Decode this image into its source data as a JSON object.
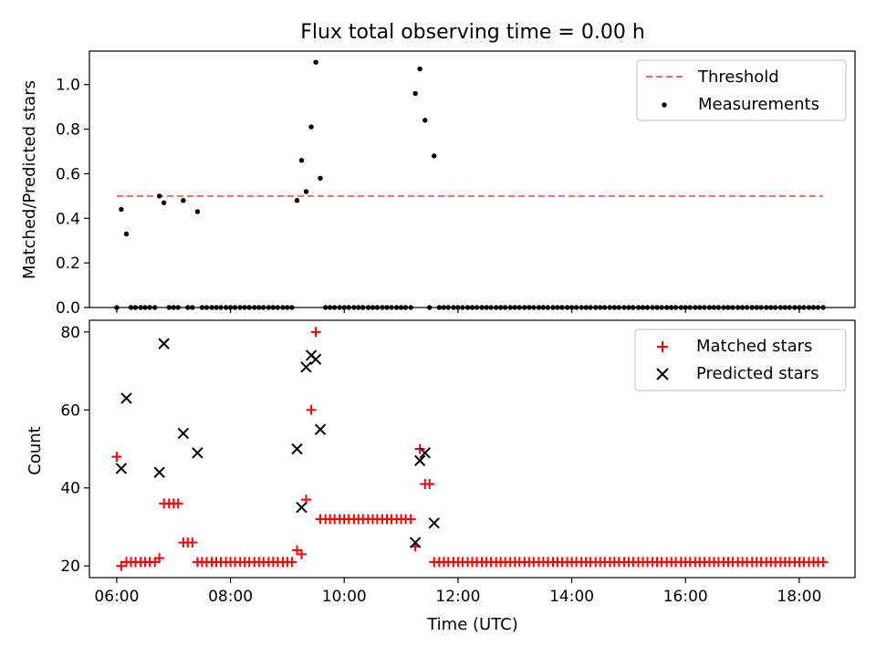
{
  "chart_data": [
    {
      "type": "scatter",
      "title": "Flux total observing time = 0.00 h",
      "xlabel": "",
      "ylabel": "Matched/Predicted stars",
      "ylim": [
        0.0,
        1.15
      ],
      "yticks": [
        "0.0",
        "0.2",
        "0.4",
        "0.6",
        "0.8",
        "1.0"
      ],
      "grid": false,
      "legend": "top-right",
      "threshold": {
        "name": "Threshold",
        "value": 0.5,
        "x_range": [
          6.0,
          18.42
        ],
        "color": "#ff6666",
        "style": "dashed"
      },
      "series": [
        {
          "name": "Measurements",
          "color": "#000000",
          "marker": "dot",
          "x": [
            6.0,
            6.08,
            6.17,
            6.25,
            6.33,
            6.42,
            6.5,
            6.58,
            6.67,
            6.75,
            6.83,
            6.92,
            7.0,
            7.08,
            7.17,
            7.25,
            7.33,
            7.42,
            7.5,
            7.58,
            7.67,
            7.75,
            7.83,
            7.92,
            8.0,
            8.08,
            8.17,
            8.25,
            8.33,
            8.42,
            8.5,
            8.58,
            8.67,
            8.75,
            8.83,
            8.92,
            9.0,
            9.08,
            9.17,
            9.25,
            9.33,
            9.42,
            9.5,
            9.58,
            9.67,
            9.75,
            9.83,
            9.92,
            10.0,
            10.08,
            10.17,
            10.25,
            10.33,
            10.42,
            10.5,
            10.58,
            10.67,
            10.75,
            10.83,
            10.92,
            11.0,
            11.08,
            11.17,
            11.25,
            11.33,
            11.42,
            11.5,
            11.58,
            11.67,
            11.75,
            11.83,
            11.92,
            12.0,
            12.08,
            12.17,
            12.25,
            12.33,
            12.42,
            12.5,
            12.58,
            12.67,
            12.75,
            12.83,
            12.92,
            13.0,
            13.08,
            13.17,
            13.25,
            13.33,
            13.42,
            13.5,
            13.58,
            13.67,
            13.75,
            13.83,
            13.92,
            14.0,
            14.08,
            14.17,
            14.25,
            14.33,
            14.42,
            14.5,
            14.58,
            14.67,
            14.75,
            14.83,
            14.92,
            15.0,
            15.08,
            15.17,
            15.25,
            15.33,
            15.42,
            15.5,
            15.58,
            15.67,
            15.75,
            15.83,
            15.92,
            16.0,
            16.08,
            16.17,
            16.25,
            16.33,
            16.42,
            16.5,
            16.58,
            16.67,
            16.75,
            16.83,
            16.92,
            17.0,
            17.08,
            17.17,
            17.25,
            17.33,
            17.42,
            17.5,
            17.58,
            17.67,
            17.75,
            17.83,
            17.92,
            18.0,
            18.08,
            18.17,
            18.25,
            18.33,
            18.42
          ],
          "y": [
            0,
            0.44,
            0.33,
            0,
            0,
            0,
            0,
            0,
            0,
            0.5,
            0.47,
            0,
            0,
            0,
            0.48,
            0,
            0,
            0.43,
            0,
            0,
            0,
            0,
            0,
            0,
            0,
            0,
            0,
            0,
            0,
            0,
            0,
            0,
            0,
            0,
            0,
            0,
            0,
            0,
            0.48,
            0.66,
            0.52,
            0.81,
            1.1,
            0.58,
            0,
            0,
            0,
            0,
            0,
            0,
            0,
            0,
            0,
            0,
            0,
            0,
            0,
            0,
            0,
            0,
            0,
            0,
            0,
            0.96,
            1.07,
            0.84,
            0,
            0.68,
            0,
            0,
            0,
            0,
            0,
            0,
            0,
            0,
            0,
            0,
            0,
            0,
            0,
            0,
            0,
            0,
            0,
            0,
            0,
            0,
            0,
            0,
            0,
            0,
            0,
            0,
            0,
            0,
            0,
            0,
            0,
            0,
            0,
            0,
            0,
            0,
            0,
            0,
            0,
            0,
            0,
            0,
            0,
            0,
            0,
            0,
            0,
            0,
            0,
            0,
            0,
            0,
            0,
            0,
            0,
            0,
            0,
            0,
            0,
            0,
            0,
            0,
            0,
            0,
            0,
            0,
            0,
            0,
            0,
            0,
            0,
            0,
            0,
            0,
            0,
            0,
            0,
            0,
            0,
            0,
            0,
            0
          ]
        }
      ]
    },
    {
      "type": "scatter",
      "title": "",
      "xlabel": "Time (UTC)",
      "ylabel": "Count",
      "xlim": [
        5.52,
        18.98
      ],
      "ylim": [
        17,
        83
      ],
      "xticks": [
        "06:00",
        "08:00",
        "10:00",
        "12:00",
        "14:00",
        "16:00",
        "18:00"
      ],
      "yticks": [
        "20",
        "40",
        "60",
        "80"
      ],
      "grid": false,
      "legend": "top-right",
      "series": [
        {
          "name": "Matched stars",
          "color": "#ff0000",
          "marker": "plus",
          "x": [
            6.0,
            6.08,
            6.17,
            6.25,
            6.33,
            6.42,
            6.5,
            6.58,
            6.67,
            6.75,
            6.83,
            6.92,
            7.0,
            7.08,
            7.17,
            7.25,
            7.33,
            7.42,
            7.5,
            7.58,
            7.67,
            7.75,
            7.83,
            7.92,
            8.0,
            8.08,
            8.17,
            8.25,
            8.33,
            8.42,
            8.5,
            8.58,
            8.67,
            8.75,
            8.83,
            8.92,
            9.0,
            9.08,
            9.17,
            9.25,
            9.33,
            9.42,
            9.5,
            9.58,
            9.67,
            9.75,
            9.83,
            9.92,
            10.0,
            10.08,
            10.17,
            10.25,
            10.33,
            10.42,
            10.5,
            10.58,
            10.67,
            10.75,
            10.83,
            10.92,
            11.0,
            11.08,
            11.17,
            11.25,
            11.33,
            11.42,
            11.5,
            11.58,
            11.67,
            11.75,
            11.83,
            11.92,
            12.0,
            12.08,
            12.17,
            12.25,
            12.33,
            12.42,
            12.5,
            12.58,
            12.67,
            12.75,
            12.83,
            12.92,
            13.0,
            13.08,
            13.17,
            13.25,
            13.33,
            13.42,
            13.5,
            13.58,
            13.67,
            13.75,
            13.83,
            13.92,
            14.0,
            14.08,
            14.17,
            14.25,
            14.33,
            14.42,
            14.5,
            14.58,
            14.67,
            14.75,
            14.83,
            14.92,
            15.0,
            15.08,
            15.17,
            15.25,
            15.33,
            15.42,
            15.5,
            15.58,
            15.67,
            15.75,
            15.83,
            15.92,
            16.0,
            16.08,
            16.17,
            16.25,
            16.33,
            16.42,
            16.5,
            16.58,
            16.67,
            16.75,
            16.83,
            16.92,
            17.0,
            17.08,
            17.17,
            17.25,
            17.33,
            17.42,
            17.5,
            17.58,
            17.67,
            17.75,
            17.83,
            17.92,
            18.0,
            18.08,
            18.17,
            18.25,
            18.33,
            18.42
          ],
          "y": [
            48,
            20,
            21,
            21,
            21,
            21,
            21,
            21,
            21,
            22,
            36,
            36,
            36,
            36,
            26,
            26,
            26,
            21,
            21,
            21,
            21,
            21,
            21,
            21,
            21,
            21,
            21,
            21,
            21,
            21,
            21,
            21,
            21,
            21,
            21,
            21,
            21,
            21,
            24,
            23,
            37,
            60,
            80,
            32,
            32,
            32,
            32,
            32,
            32,
            32,
            32,
            32,
            32,
            32,
            32,
            32,
            32,
            32,
            32,
            32,
            32,
            32,
            32,
            25,
            50,
            41,
            41,
            21,
            21,
            21,
            21,
            21,
            21,
            21,
            21,
            21,
            21,
            21,
            21,
            21,
            21,
            21,
            21,
            21,
            21,
            21,
            21,
            21,
            21,
            21,
            21,
            21,
            21,
            21,
            21,
            21,
            21,
            21,
            21,
            21,
            21,
            21,
            21,
            21,
            21,
            21,
            21,
            21,
            21,
            21,
            21,
            21,
            21,
            21,
            21,
            21,
            21,
            21,
            21,
            21,
            21,
            21,
            21,
            21,
            21,
            21,
            21,
            21,
            21,
            21,
            21,
            21,
            21,
            21,
            21,
            21,
            21,
            21,
            21,
            21,
            21,
            21,
            21,
            21,
            21,
            21,
            21,
            21,
            21,
            21
          ]
        },
        {
          "name": "Predicted stars",
          "color": "#000000",
          "marker": "x",
          "x": [
            6.08,
            6.17,
            6.75,
            6.83,
            7.17,
            7.42,
            9.17,
            9.25,
            9.33,
            9.42,
            9.5,
            9.58,
            11.25,
            11.33,
            11.42,
            11.58
          ],
          "y": [
            45,
            63,
            44,
            77,
            54,
            49,
            50,
            35,
            71,
            74,
            73,
            55,
            26,
            47,
            49,
            31
          ]
        }
      ]
    }
  ]
}
